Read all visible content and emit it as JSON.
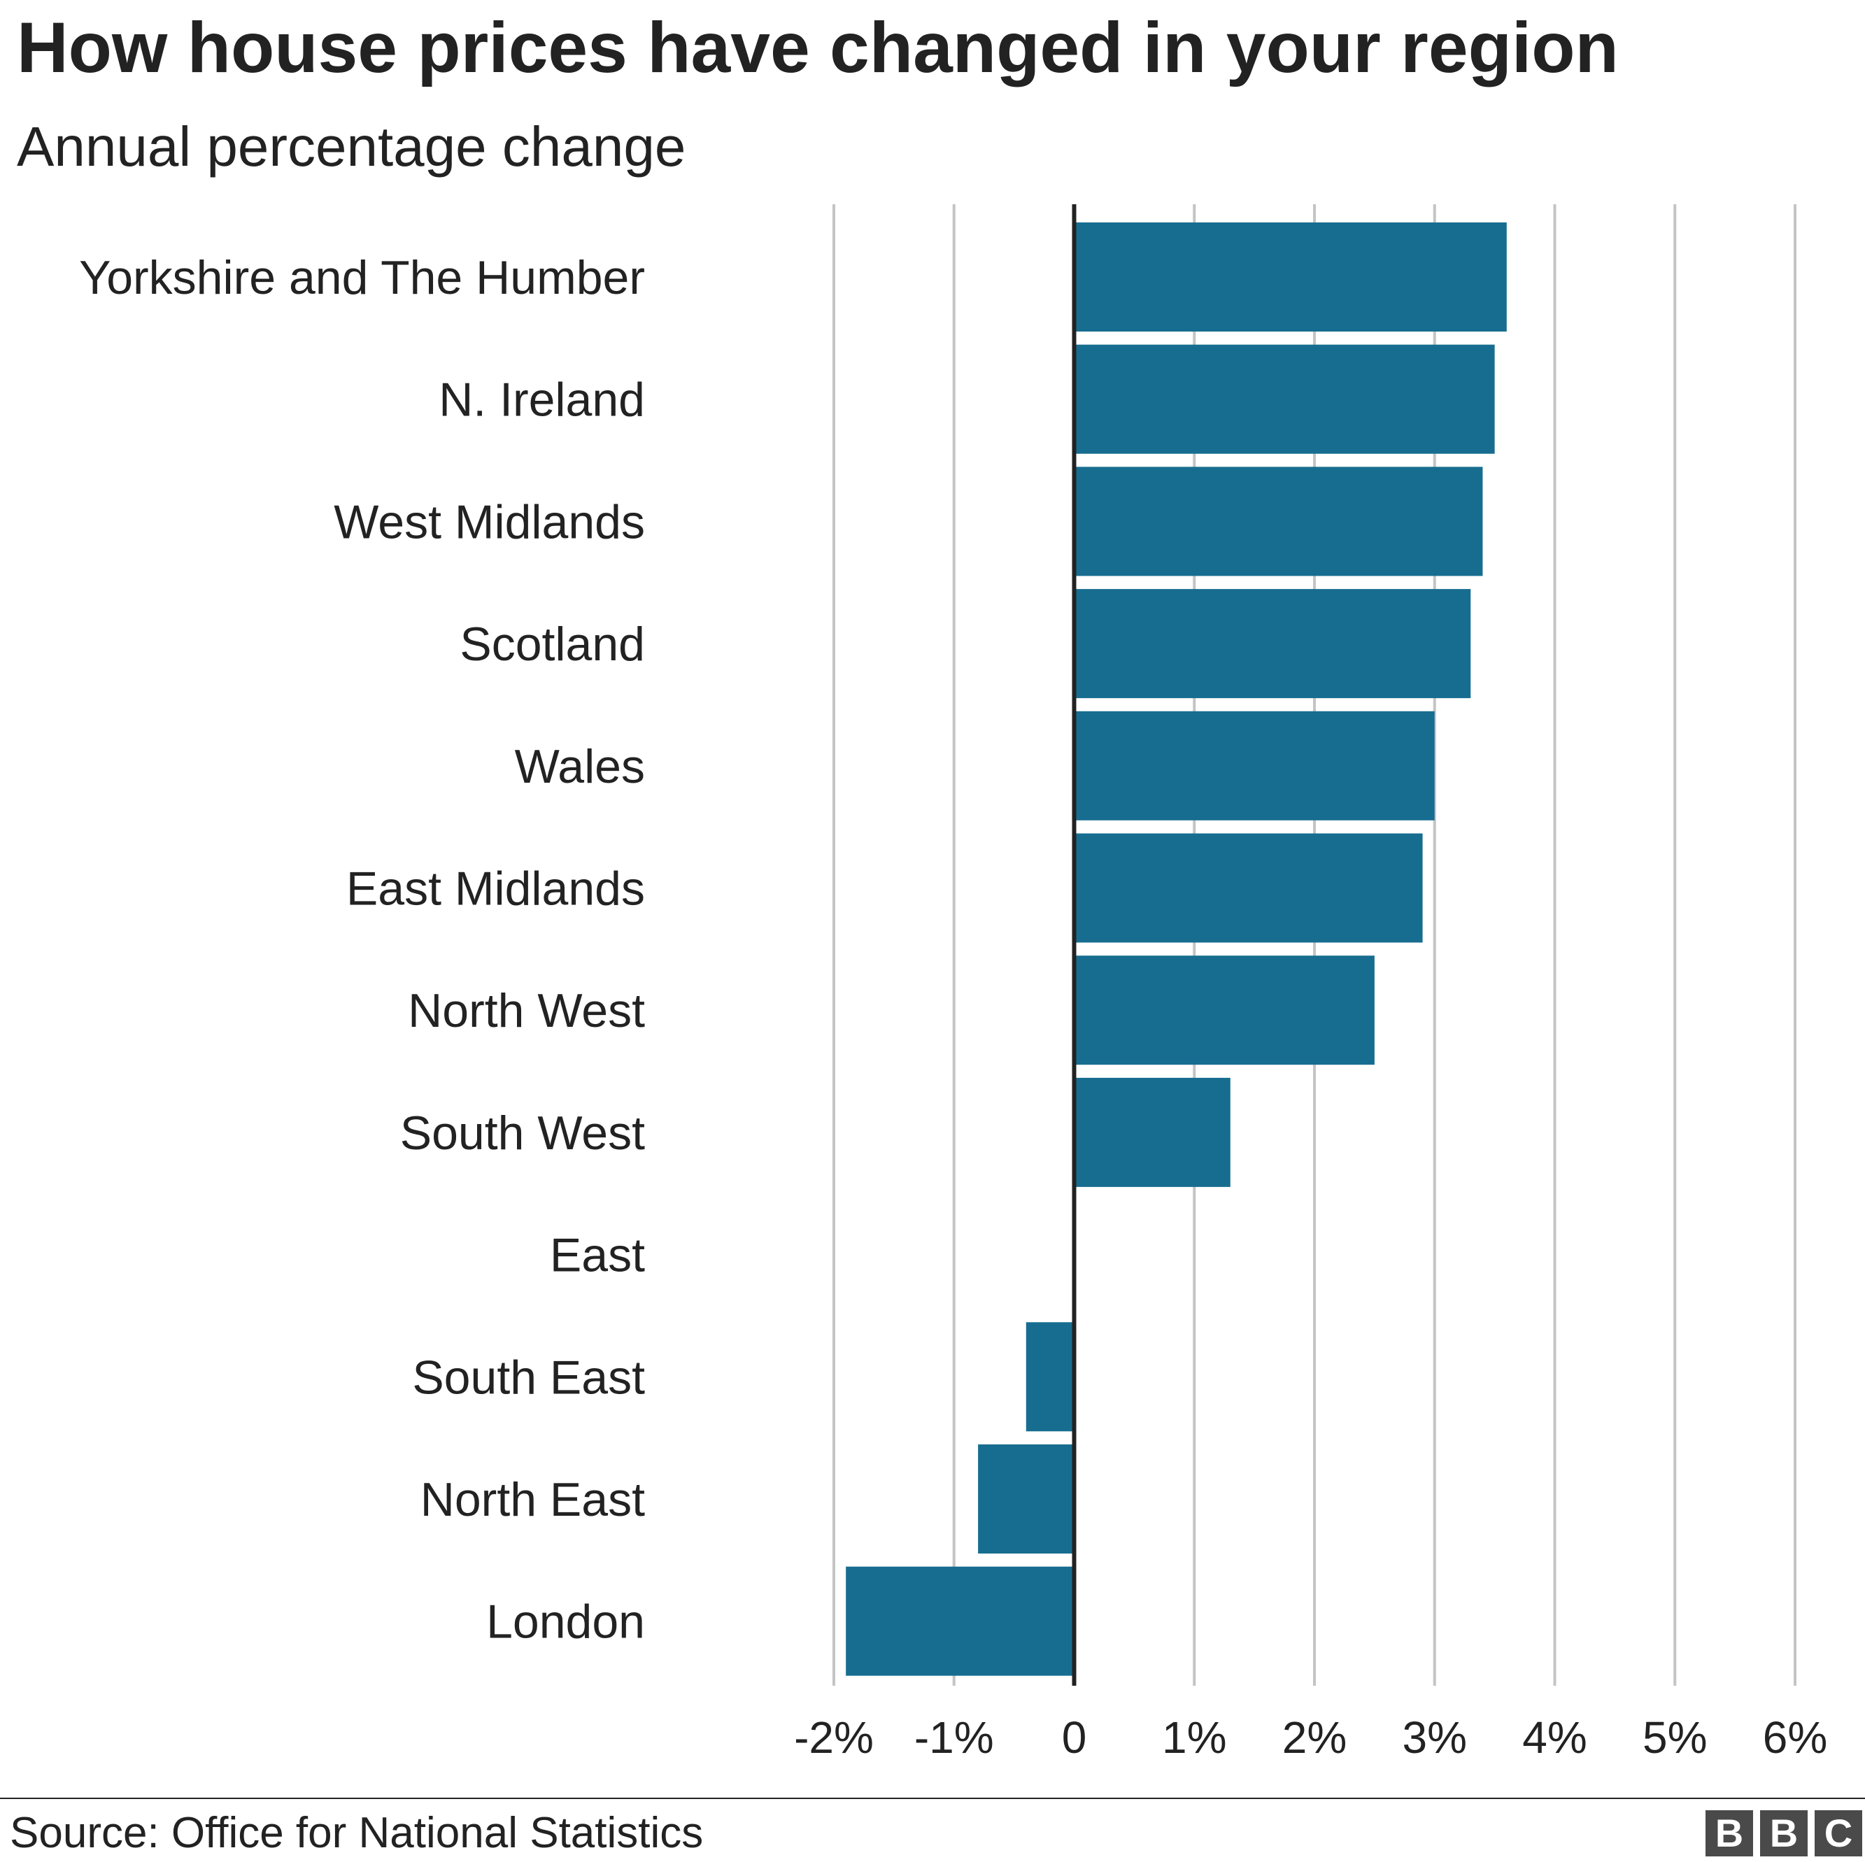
{
  "header": {
    "title": "How house prices have changed in your region",
    "subtitle": "Annual percentage change"
  },
  "chart_data": {
    "type": "bar",
    "orientation": "horizontal",
    "categories": [
      "Yorkshire and The Humber",
      "N. Ireland",
      "West Midlands",
      "Scotland",
      "Wales",
      "East Midlands",
      "North West",
      "South West",
      "East",
      "South East",
      "North East",
      "London"
    ],
    "values": [
      3.6,
      3.5,
      3.4,
      3.3,
      3.0,
      2.9,
      2.5,
      1.3,
      0.0,
      -0.4,
      -0.8,
      -1.9
    ],
    "xlim": [
      -2,
      6
    ],
    "xticks": [
      -2,
      -1,
      0,
      1,
      2,
      3,
      4,
      5,
      6
    ],
    "xtick_labels": [
      "-2%",
      "-1%",
      "0",
      "1%",
      "2%",
      "3%",
      "4%",
      "5%",
      "6%"
    ],
    "grid": "vertical",
    "bar_color": "#176d90"
  },
  "footer": {
    "source": "Source: Office for National Statistics",
    "logo_letters": [
      "B",
      "B",
      "C"
    ]
  }
}
